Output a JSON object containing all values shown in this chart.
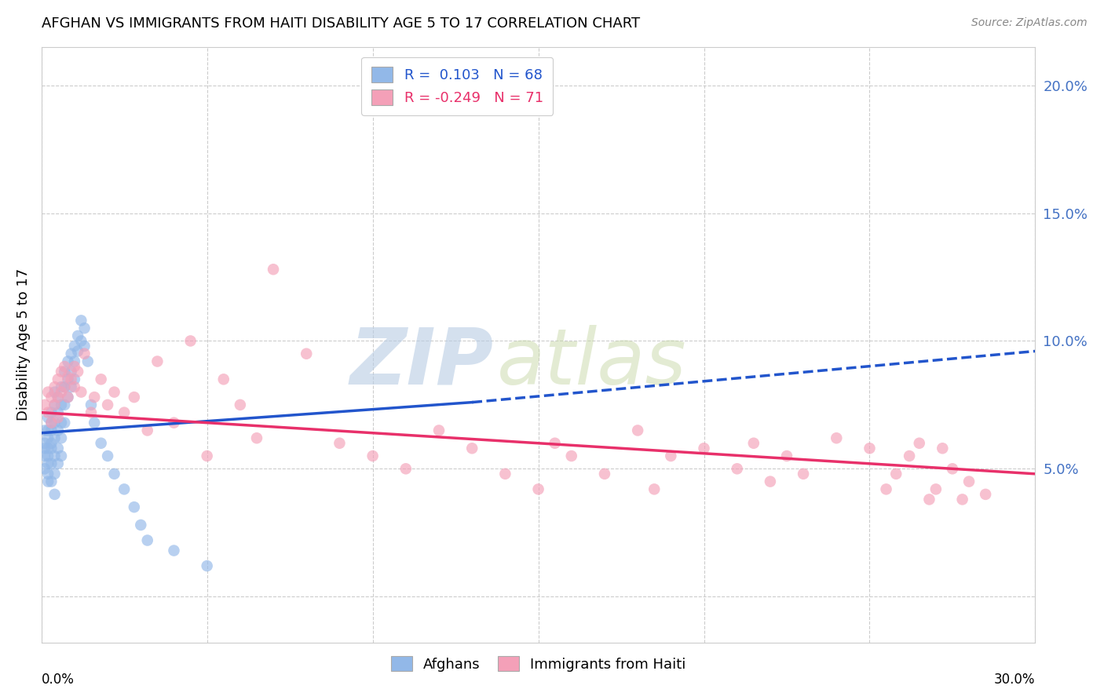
{
  "title": "AFGHAN VS IMMIGRANTS FROM HAITI DISABILITY AGE 5 TO 17 CORRELATION CHART",
  "source": "Source: ZipAtlas.com",
  "ylabel": "Disability Age 5 to 17",
  "right_ytick_vals": [
    0.0,
    0.05,
    0.1,
    0.15,
    0.2
  ],
  "right_yticklabels": [
    "",
    "5.0%",
    "10.0%",
    "15.0%",
    "20.0%"
  ],
  "xlim": [
    0.0,
    0.3
  ],
  "ylim": [
    -0.018,
    0.215
  ],
  "legend_afghan": "R =  0.103   N = 68",
  "legend_haiti": "R = -0.249   N = 71",
  "blue_color": "#92b8e8",
  "pink_color": "#f4a0b8",
  "trend_blue": "#2255cc",
  "trend_pink": "#e8306a",
  "right_axis_color": "#4472c4",
  "trend_blue_start_x": 0.0,
  "trend_blue_start_y": 0.064,
  "trend_blue_solid_end_x": 0.13,
  "trend_blue_solid_end_y": 0.076,
  "trend_blue_dash_end_x": 0.3,
  "trend_blue_dash_end_y": 0.096,
  "trend_pink_start_x": 0.0,
  "trend_pink_start_y": 0.072,
  "trend_pink_end_x": 0.3,
  "trend_pink_end_y": 0.048,
  "afghan_x": [
    0.001,
    0.001,
    0.001,
    0.001,
    0.001,
    0.002,
    0.002,
    0.002,
    0.002,
    0.002,
    0.002,
    0.002,
    0.002,
    0.003,
    0.003,
    0.003,
    0.003,
    0.003,
    0.003,
    0.003,
    0.004,
    0.004,
    0.004,
    0.004,
    0.004,
    0.004,
    0.004,
    0.005,
    0.005,
    0.005,
    0.005,
    0.005,
    0.006,
    0.006,
    0.006,
    0.006,
    0.006,
    0.007,
    0.007,
    0.007,
    0.007,
    0.008,
    0.008,
    0.008,
    0.009,
    0.009,
    0.009,
    0.01,
    0.01,
    0.01,
    0.011,
    0.011,
    0.012,
    0.012,
    0.013,
    0.013,
    0.014,
    0.015,
    0.016,
    0.018,
    0.02,
    0.022,
    0.025,
    0.028,
    0.03,
    0.032,
    0.04,
    0.05
  ],
  "afghan_y": [
    0.06,
    0.055,
    0.065,
    0.058,
    0.05,
    0.062,
    0.055,
    0.048,
    0.07,
    0.065,
    0.058,
    0.052,
    0.045,
    0.072,
    0.065,
    0.058,
    0.052,
    0.045,
    0.068,
    0.06,
    0.075,
    0.068,
    0.062,
    0.055,
    0.048,
    0.08,
    0.04,
    0.078,
    0.072,
    0.065,
    0.058,
    0.052,
    0.082,
    0.075,
    0.068,
    0.062,
    0.055,
    0.088,
    0.082,
    0.075,
    0.068,
    0.092,
    0.085,
    0.078,
    0.095,
    0.088,
    0.082,
    0.098,
    0.092,
    0.085,
    0.102,
    0.096,
    0.108,
    0.1,
    0.105,
    0.098,
    0.092,
    0.075,
    0.068,
    0.06,
    0.055,
    0.048,
    0.042,
    0.035,
    0.028,
    0.022,
    0.018,
    0.012
  ],
  "haiti_x": [
    0.001,
    0.002,
    0.002,
    0.003,
    0.003,
    0.004,
    0.004,
    0.005,
    0.005,
    0.005,
    0.006,
    0.006,
    0.007,
    0.007,
    0.008,
    0.008,
    0.009,
    0.01,
    0.01,
    0.011,
    0.012,
    0.013,
    0.015,
    0.016,
    0.018,
    0.02,
    0.022,
    0.025,
    0.028,
    0.032,
    0.035,
    0.04,
    0.045,
    0.05,
    0.055,
    0.06,
    0.065,
    0.07,
    0.08,
    0.09,
    0.1,
    0.11,
    0.12,
    0.13,
    0.14,
    0.15,
    0.155,
    0.16,
    0.17,
    0.18,
    0.185,
    0.19,
    0.2,
    0.21,
    0.215,
    0.22,
    0.225,
    0.23,
    0.24,
    0.25,
    0.255,
    0.258,
    0.262,
    0.265,
    0.268,
    0.27,
    0.272,
    0.275,
    0.278,
    0.28,
    0.285
  ],
  "haiti_y": [
    0.075,
    0.08,
    0.072,
    0.078,
    0.068,
    0.082,
    0.075,
    0.085,
    0.078,
    0.07,
    0.088,
    0.08,
    0.09,
    0.082,
    0.086,
    0.078,
    0.085,
    0.09,
    0.082,
    0.088,
    0.08,
    0.095,
    0.072,
    0.078,
    0.085,
    0.075,
    0.08,
    0.072,
    0.078,
    0.065,
    0.092,
    0.068,
    0.1,
    0.055,
    0.085,
    0.075,
    0.062,
    0.128,
    0.095,
    0.06,
    0.055,
    0.05,
    0.065,
    0.058,
    0.048,
    0.042,
    0.06,
    0.055,
    0.048,
    0.065,
    0.042,
    0.055,
    0.058,
    0.05,
    0.06,
    0.045,
    0.055,
    0.048,
    0.062,
    0.058,
    0.042,
    0.048,
    0.055,
    0.06,
    0.038,
    0.042,
    0.058,
    0.05,
    0.038,
    0.045,
    0.04
  ]
}
